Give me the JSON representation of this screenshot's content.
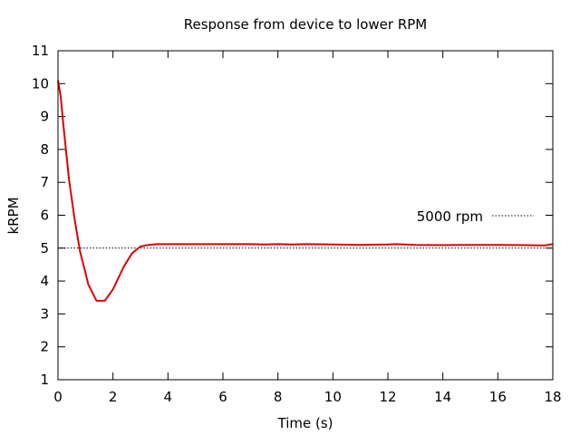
{
  "chart_data": {
    "type": "line",
    "title": "Response from device to lower RPM",
    "xlabel": "Time (s)",
    "ylabel": "kRPM",
    "xlim": [
      0,
      18
    ],
    "ylim": [
      1,
      11
    ],
    "xticks": [
      0,
      2,
      4,
      6,
      8,
      10,
      12,
      14,
      16,
      18
    ],
    "yticks": [
      1,
      2,
      3,
      4,
      5,
      6,
      7,
      8,
      9,
      10,
      11
    ],
    "grid": false,
    "legend_position": "right",
    "reference_line": {
      "label": "5000 rpm",
      "y": 5.0,
      "style": "dotted",
      "color": "#000000"
    },
    "series": [
      {
        "color": "#e00000",
        "x": [
          0,
          0.1,
          0.2,
          0.4,
          0.6,
          0.8,
          1.0,
          1.1,
          1.4,
          1.7,
          2.0,
          2.4,
          2.7,
          3.0,
          3.3,
          3.6,
          4,
          5,
          6,
          7,
          7.5,
          8,
          8.5,
          9,
          10,
          11,
          12,
          12.3,
          13,
          14,
          15,
          16,
          17,
          17.7,
          18
        ],
        "y": [
          10.1,
          9.6,
          8.7,
          7.1,
          5.9,
          4.9,
          4.25,
          3.9,
          3.4,
          3.4,
          3.75,
          4.45,
          4.85,
          5.05,
          5.1,
          5.12,
          5.12,
          5.12,
          5.12,
          5.12,
          5.11,
          5.12,
          5.11,
          5.12,
          5.11,
          5.1,
          5.11,
          5.12,
          5.1,
          5.09,
          5.1,
          5.1,
          5.09,
          5.08,
          5.12
        ]
      }
    ]
  }
}
